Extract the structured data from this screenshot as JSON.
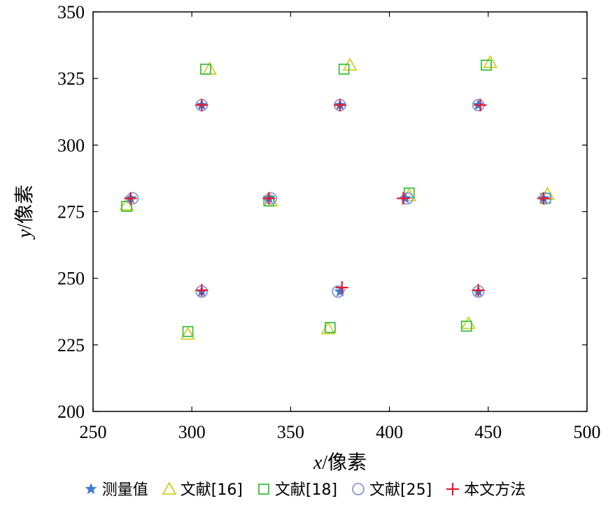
{
  "chart_data": {
    "type": "scatter",
    "title": "",
    "xlabel_var": "x",
    "xlabel_unit": "/像素",
    "ylabel_var": "y",
    "ylabel_unit": "/像素",
    "xlim": [
      250,
      500
    ],
    "ylim": [
      200,
      350
    ],
    "xticks": [
      250,
      300,
      350,
      400,
      450,
      500
    ],
    "yticks": [
      200,
      225,
      250,
      275,
      300,
      325,
      350
    ],
    "grid": false,
    "legend_placement": "bottom",
    "series": [
      {
        "name": "测量值",
        "marker": "star",
        "color": "#3b7bd4",
        "points": [
          [
            305,
            315
          ],
          [
            375,
            315
          ],
          [
            445,
            315
          ],
          [
            269,
            280
          ],
          [
            339,
            280
          ],
          [
            408,
            280
          ],
          [
            478,
            280
          ],
          [
            305,
            245
          ],
          [
            375,
            245
          ],
          [
            445,
            245
          ]
        ]
      },
      {
        "name": "文献[16]",
        "marker": "triangle",
        "color": "#cfcf2a",
        "points": [
          [
            309,
            328.5
          ],
          [
            380,
            330
          ],
          [
            451,
            331
          ],
          [
            267,
            277.5
          ],
          [
            340,
            279
          ],
          [
            410,
            281
          ],
          [
            480,
            281.5
          ],
          [
            298,
            229
          ],
          [
            369,
            231
          ],
          [
            440,
            233
          ]
        ]
      },
      {
        "name": "文献[18]",
        "marker": "square",
        "color": "#3fbf3f",
        "points": [
          [
            307,
            328.5
          ],
          [
            377,
            328.5
          ],
          [
            449,
            330
          ],
          [
            267,
            277
          ],
          [
            339,
            279
          ],
          [
            410,
            282
          ],
          [
            479,
            280
          ],
          [
            298,
            230
          ],
          [
            370,
            231.5
          ],
          [
            439,
            232
          ]
        ]
      },
      {
        "name": "文献[25]",
        "marker": "circle",
        "color": "#8a98d6",
        "points": [
          [
            305,
            315
          ],
          [
            375,
            315
          ],
          [
            445,
            315
          ],
          [
            270,
            280
          ],
          [
            340,
            280
          ],
          [
            409,
            280
          ],
          [
            479,
            280
          ],
          [
            305,
            245
          ],
          [
            374,
            245
          ],
          [
            445,
            245
          ]
        ]
      },
      {
        "name": "本文方法",
        "marker": "plus",
        "color": "#e8192c",
        "points": [
          [
            305,
            315
          ],
          [
            375,
            315
          ],
          [
            446,
            315
          ],
          [
            269,
            280
          ],
          [
            339,
            280
          ],
          [
            407,
            280
          ],
          [
            478,
            280
          ],
          [
            305,
            245.5
          ],
          [
            376,
            246.5
          ],
          [
            445,
            245.5
          ]
        ]
      }
    ]
  }
}
